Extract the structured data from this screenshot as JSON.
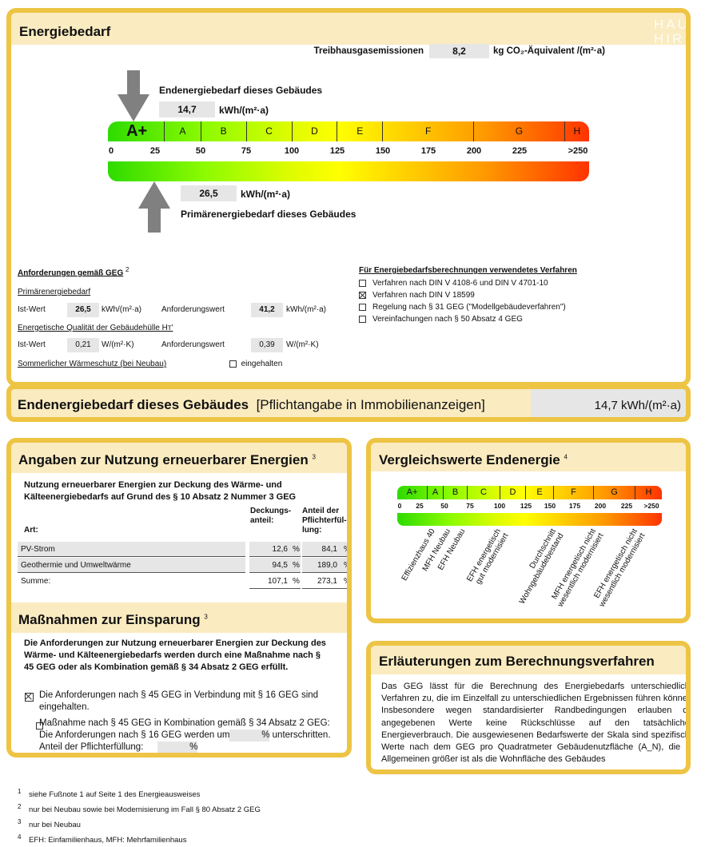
{
  "logo": "HAUS HIRSCH",
  "energiebedarf": {
    "title": "Energiebedarf",
    "ghg_label": "Treibhausgasemissionen",
    "ghg_value": "8,2",
    "ghg_unit": "kg CO₂-Äquivalent /(m²·a)",
    "end_label": "Endenergiebedarf dieses Gebäudes",
    "end_value": "14,7",
    "end_unit": "kWh/(m²·a)",
    "prim_label": "Primärenergiebedarf dieses Gebäudes",
    "prim_value": "26,5",
    "prim_unit": "kWh/(m²·a)",
    "classes": [
      "A+",
      "A",
      "B",
      "C",
      "D",
      "E",
      "F",
      "G",
      "H"
    ],
    "ticks": [
      "0",
      "25",
      "50",
      "75",
      "100",
      "125",
      "150",
      "175",
      "200",
      "225",
      ">250"
    ],
    "end_marker_value": 14.7,
    "prim_marker_value": 26.5
  },
  "req": {
    "title": "Anforderungen gemäß GEG",
    "title_sup": "2",
    "prim_heading": "Primärenergiebedarf",
    "ist_label": "Ist-Wert",
    "prim_ist": "26,5",
    "prim_unit": "kWh/(m²·a)",
    "anf_label": "Anforderungswert",
    "prim_anf": "41,2",
    "ht_heading": "Energetische Qualität der Gebäudehülle Hᴛ'",
    "ht_ist": "0,21",
    "ht_unit": "W/(m²·K)",
    "ht_anf": "0,39",
    "summer_label": "Sommerlicher Wärmeschutz (bei Neubau)",
    "summer_check": "eingehalten",
    "summer_checked": false
  },
  "verfahren": {
    "title": "Für Energiebedarfsberechnungen verwendetes Verfahren",
    "options": [
      {
        "label": "Verfahren nach DIN V 4108-6 und DIN V 4701-10",
        "checked": false
      },
      {
        "label": "Verfahren nach DIN V 18599",
        "checked": true
      },
      {
        "label": "Regelung nach § 31 GEG (\"Modellgebäudeverfahren\")",
        "checked": false
      },
      {
        "label": "Vereinfachungen nach § 50 Absatz 4 GEG",
        "checked": false
      }
    ]
  },
  "summary": {
    "label": "Endenergiebedarf dieses Gebäudes",
    "note": "[Pflichtangabe in Immobilienanzeigen]",
    "value": "14,7 kWh/(m²·a)"
  },
  "renewables": {
    "title": "Angaben zur Nutzung erneuerbarer Energien",
    "title_sup": "3",
    "subtitle": "Nutzung erneuerbarer Energien zur Deckung des Wärme- und Kälteenergiebedarfs auf Grund des § 10 Absatz 2 Nummer 3 GEG",
    "col_art": "Art:",
    "col_deckung": "Deckungs-\nanteil:",
    "col_anteil": "Anteil der\nPflichterfül-\nlung:",
    "rows": [
      {
        "art": "PV-Strom",
        "deckung": "12,6",
        "anteil": "84,1",
        "unit": "%"
      },
      {
        "art": "Geothermie und Umweltwärme",
        "deckung": "94,5",
        "anteil": "189,0",
        "unit": "%"
      },
      {
        "art": "Summe:",
        "deckung": "107,1",
        "anteil": "273,1",
        "unit": "%"
      }
    ]
  },
  "massnahmen": {
    "title": "Maßnahmen zur Einsparung",
    "title_sup": "3",
    "intro": "Die Anforderungen zur Nutzung erneuerbarer Energien zur Deckung des Wärme- und Kälteenergiebedarfs werden durch eine Maßnahme nach § 45 GEG oder als Kombination gemäß § 34 Absatz 2 GEG erfüllt.",
    "opt1": "Die Anforderungen nach § 45 GEG in Verbindung mit § 16 GEG sind eingehalten.",
    "opt1_checked": true,
    "opt2_a": "Maßnahme nach § 45 GEG in Kombination gemäß § 34 Absatz 2 GEG: Die Anforderungen nach § 16 GEG werden um",
    "opt2_b": "unterschritten. Anteil der Pflichterfüllung:",
    "opt2_checked": false,
    "percent": "%",
    "unter_value": "",
    "pflicht_value": ""
  },
  "vergleich": {
    "title": "Vergleichswerte Endenergie",
    "title_sup": "4",
    "classes": [
      "A+",
      "A",
      "B",
      "C",
      "D",
      "E",
      "F",
      "G",
      "H"
    ],
    "ticks": [
      "0",
      "25",
      "50",
      "75",
      "100",
      "125",
      "150",
      "175",
      "200",
      "225",
      ">250"
    ],
    "labels": [
      "Effizienzhaus 40",
      "MFH Neubau",
      "EFH Neubau",
      "EFH energetisch\ngut modernisiert",
      "Durchschnitt\nWohngebäudebestand",
      "MFH energetisch nicht\nwesentlich modernisiert",
      "EFH energetisch nicht\nwesentlich modernisiert"
    ]
  },
  "erlaeuterung": {
    "title": "Erläuterungen zum Berechnungsverfahren",
    "text": "Das GEG lässt für die Berechnung des Energiebedarfs unterschiedliche Verfahren zu, die im Einzelfall zu unterschiedlichen Ergebnissen führen können. Insbesondere wegen standardisierter Randbedingungen erlauben die angegebenen Werte keine Rückschlüsse auf den tatsächlichen Energieverbrauch. Die ausgewiesenen Bedarfswerte der Skala sind spezifische Werte nach dem GEG pro Quadratmeter Gebäudenutzfläche (A_N), die im Allgemeinen größer ist als die Wohnfläche des Gebäudes"
  },
  "footnotes": [
    {
      "n": "1",
      "text": "siehe Fußnote 1 auf Seite 1 des Energieausweises"
    },
    {
      "n": "2",
      "text": "nur bei Neubau sowie bei Modernisierung im Fall § 80 Absatz 2 GEG"
    },
    {
      "n": "3",
      "text": "nur bei Neubau"
    },
    {
      "n": "4",
      "text": "EFH: Einfamilienhaus, MFH: Mehrfamilienhaus"
    }
  ]
}
